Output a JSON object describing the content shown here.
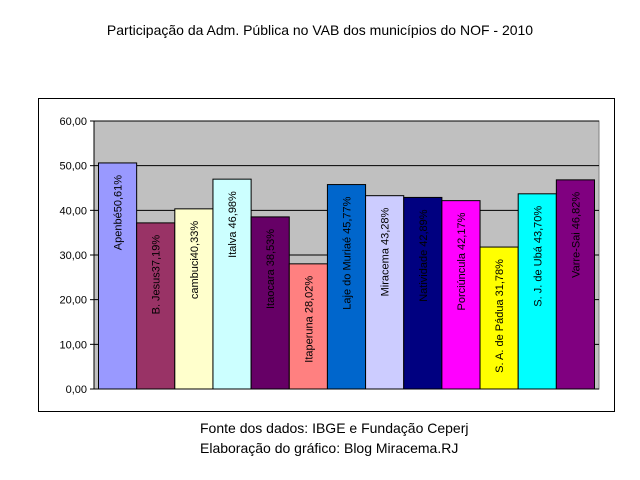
{
  "chart_data": {
    "type": "bar",
    "title": "Participação da Adm. Pública no VAB dos municípios do NOF - 2010",
    "categories": [
      "Apenbé",
      "B. Jesus",
      "cambuci",
      "Italva",
      "Itaocara",
      "Itaperuna",
      "Laje do Muriaé",
      "Miracema",
      "Natividade",
      "Porciúncula",
      "S. A. de Pádua",
      "S. J. de Ubá",
      "Varre-Sai"
    ],
    "values": [
      50.61,
      37.19,
      40.33,
      46.98,
      38.53,
      28.02,
      45.77,
      43.28,
      42.89,
      42.17,
      31.78,
      43.7,
      46.82
    ],
    "data_labels": [
      "Apenbé50,61%",
      "B. Jesus37,19%",
      "cambuci40,33%",
      "Italva 46,98%",
      "Itaocara 38,53%",
      "Itaperuna 28,02%",
      "Laje do Muriaé 45,77%",
      "Miracema 43,28%",
      "Natividade 42,89%",
      "Porciúncula 42,17%",
      "S. A. de Pádua 31,78%",
      "S. J. de Ubá 43,70%",
      "Varre-Sai 46,82%"
    ],
    "bar_colors": [
      "#9999ff",
      "#993366",
      "#ffffcc",
      "#ccffff",
      "#660066",
      "#ff8080",
      "#0066cc",
      "#ccccff",
      "#000080",
      "#ff00ff",
      "#ffff00",
      "#00ffff",
      "#800080"
    ],
    "ylim": [
      0,
      60
    ],
    "yticks": [
      "0,00",
      "10,00",
      "20,00",
      "30,00",
      "40,00",
      "50,00",
      "60,00"
    ],
    "ytick_values": [
      0,
      10,
      20,
      30,
      40,
      50,
      60
    ],
    "plot_background": "#c0c0c0",
    "grid": true,
    "legend": "none",
    "xlabel": "",
    "ylabel": ""
  },
  "footer": {
    "source": "Fonte dos dados: IBGE e Fundação Ceperj",
    "author": "Elaboração do gráfico: Blog Miracema.RJ"
  }
}
